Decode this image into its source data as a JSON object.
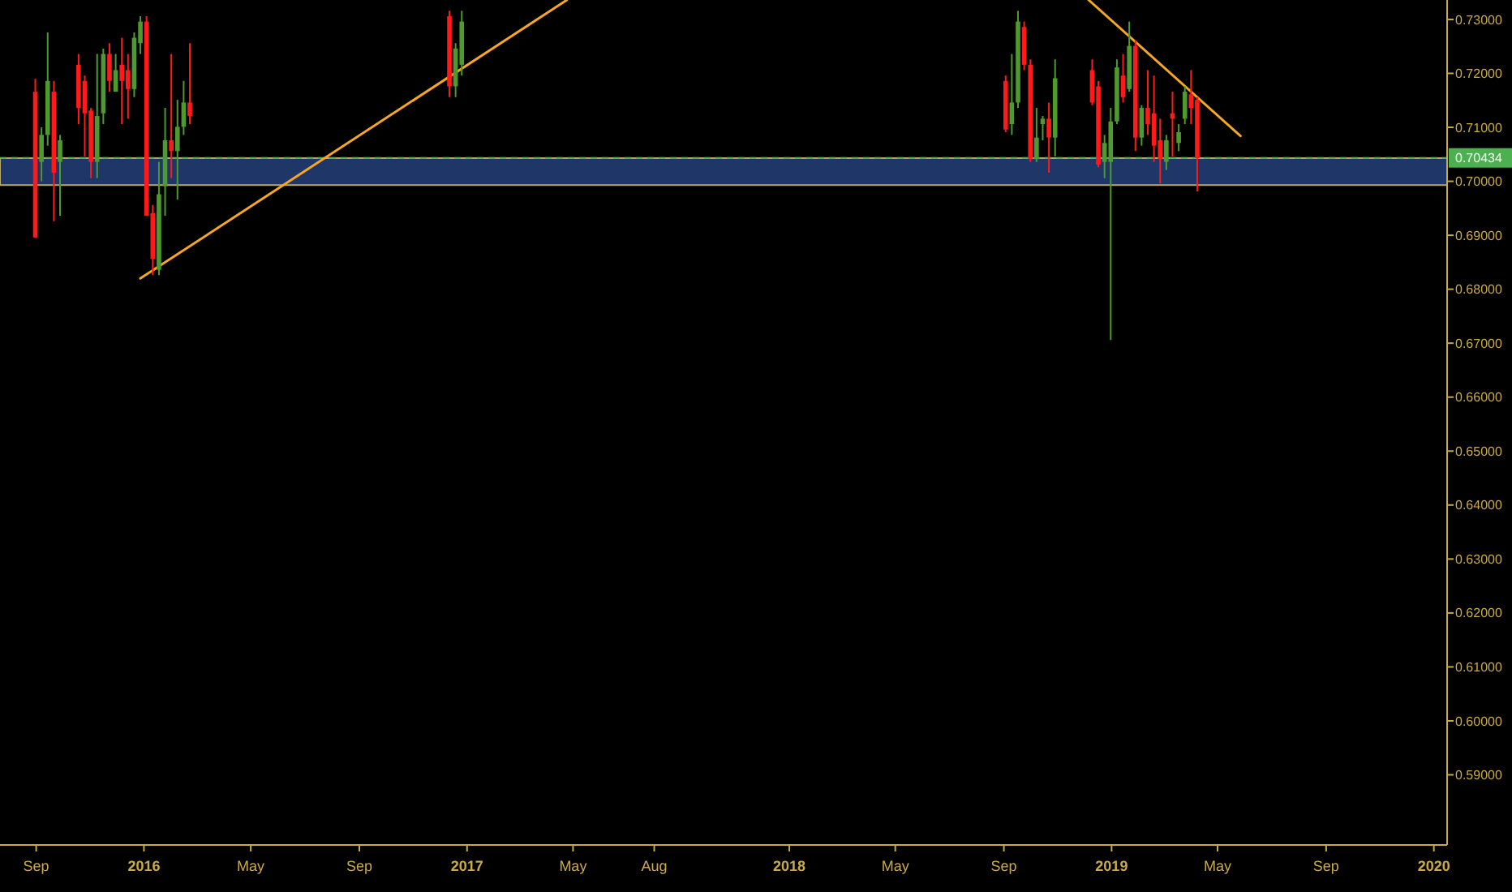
{
  "chart_data": {
    "type": "candlestick",
    "x": [
      "2015-08-31",
      "2015-09-07",
      "2015-09-14",
      "2015-09-21",
      "2015-09-28",
      "2015-10-19",
      "2015-10-26",
      "2015-11-02",
      "2015-11-09",
      "2015-11-16",
      "2015-11-23",
      "2015-11-30",
      "2015-12-07",
      "2015-12-14",
      "2015-12-21",
      "2015-12-28",
      "2016-01-04",
      "2016-01-11",
      "2016-01-18",
      "2016-01-25",
      "2016-02-01",
      "2016-02-08",
      "2016-02-15",
      "2016-02-22",
      "2016-12-12",
      "2016-12-19",
      "2016-12-26",
      "2018-09-03",
      "2018-09-10",
      "2018-09-17",
      "2018-09-24",
      "2018-10-01",
      "2018-10-08",
      "2018-10-15",
      "2018-10-22",
      "2018-10-29",
      "2018-12-10",
      "2018-12-17",
      "2018-12-24",
      "2018-12-31",
      "2019-01-07",
      "2019-01-14",
      "2019-01-21",
      "2019-01-28",
      "2019-02-04",
      "2019-02-11",
      "2019-02-18",
      "2019-02-25",
      "2019-03-04",
      "2019-03-11",
      "2019-03-18",
      "2019-03-25",
      "2019-04-01",
      "2019-04-08"
    ],
    "ohlc": [
      [
        0.7166,
        0.719,
        0.6896,
        0.6896
      ],
      [
        0.7036,
        0.71,
        0.7,
        0.7086
      ],
      [
        0.7086,
        0.7276,
        0.7066,
        0.7186
      ],
      [
        0.7166,
        0.7186,
        0.6926,
        0.7016
      ],
      [
        0.7036,
        0.7086,
        0.6936,
        0.7076
      ],
      [
        0.7216,
        0.7236,
        0.7106,
        0.7136
      ],
      [
        0.7186,
        0.7196,
        0.7046,
        0.7126
      ],
      [
        0.7131,
        0.7136,
        0.7006,
        0.7036
      ],
      [
        0.7036,
        0.7236,
        0.7006,
        0.7121
      ],
      [
        0.7126,
        0.7246,
        0.7106,
        0.7236
      ],
      [
        0.7236,
        0.7256,
        0.7166,
        0.7186
      ],
      [
        0.7166,
        0.7236,
        0.7166,
        0.7206
      ],
      [
        0.7216,
        0.7266,
        0.7106,
        0.7186
      ],
      [
        0.7206,
        0.7236,
        0.7116,
        0.7171
      ],
      [
        0.7171,
        0.7276,
        0.7156,
        0.7266
      ],
      [
        0.7256,
        0.7306,
        0.7236,
        0.7296
      ],
      [
        0.7296,
        0.7306,
        0.6936,
        0.6936
      ],
      [
        0.6941,
        0.6956,
        0.6826,
        0.6856
      ],
      [
        0.6836,
        0.7036,
        0.6826,
        0.6976
      ],
      [
        0.6991,
        0.7136,
        0.6936,
        0.7076
      ],
      [
        0.7076,
        0.7236,
        0.7006,
        0.7056
      ],
      [
        0.7056,
        0.7151,
        0.6966,
        0.7101
      ],
      [
        0.7101,
        0.7186,
        0.7086,
        0.7146
      ],
      [
        0.7146,
        0.7256,
        0.7106,
        0.7121
      ],
      [
        0.7306,
        0.7316,
        0.7156,
        0.7176
      ],
      [
        0.7176,
        0.7256,
        0.7156,
        0.7246
      ],
      [
        0.7216,
        0.7316,
        0.7196,
        0.7296
      ],
      [
        0.7186,
        0.7196,
        0.7091,
        0.7096
      ],
      [
        0.7106,
        0.7236,
        0.7086,
        0.7146
      ],
      [
        0.7146,
        0.7316,
        0.7136,
        0.7296
      ],
      [
        0.7286,
        0.7296,
        0.7206,
        0.7216
      ],
      [
        0.7216,
        0.7226,
        0.7036,
        0.7041
      ],
      [
        0.7041,
        0.7136,
        0.7036,
        0.7081
      ],
      [
        0.7106,
        0.7121,
        0.7076,
        0.7116
      ],
      [
        0.7116,
        0.7146,
        0.7016,
        0.7081
      ],
      [
        0.7081,
        0.7226,
        0.7046,
        0.7191
      ],
      [
        0.7206,
        0.7226,
        0.7141,
        0.7146
      ],
      [
        0.7176,
        0.7186,
        0.7026,
        0.7031
      ],
      [
        0.7036,
        0.7086,
        0.7006,
        0.7071
      ],
      [
        0.7036,
        0.7136,
        0.6706,
        0.7111
      ],
      [
        0.7111,
        0.7226,
        0.7106,
        0.7211
      ],
      [
        0.7196,
        0.7236,
        0.7146,
        0.7156
      ],
      [
        0.7171,
        0.7296,
        0.7166,
        0.7251
      ],
      [
        0.7251,
        0.7261,
        0.7056,
        0.7081
      ],
      [
        0.7081,
        0.7141,
        0.7066,
        0.7136
      ],
      [
        0.7136,
        0.7206,
        0.7086,
        0.7106
      ],
      [
        0.7126,
        0.7196,
        0.7036,
        0.7066
      ],
      [
        0.7076,
        0.7116,
        0.6996,
        0.7041
      ],
      [
        0.7036,
        0.7086,
        0.7021,
        0.7076
      ],
      [
        0.7126,
        0.7166,
        0.7046,
        0.7116
      ],
      [
        0.7071,
        0.7106,
        0.7056,
        0.7091
      ],
      [
        0.7116,
        0.7176,
        0.7106,
        0.7166
      ],
      [
        0.7161,
        0.7206,
        0.7106,
        0.7136
      ],
      [
        0.7151,
        0.7156,
        0.6981,
        0.7043
      ]
    ],
    "series": [
      {
        "type": "line",
        "x": [
          "2015-12-28",
          "2017-04-24"
        ],
        "values": [
          0.682,
          0.7336
        ],
        "color": "#f5a623"
      },
      {
        "type": "line",
        "x": [
          "2018-12-06",
          "2019-05-27"
        ],
        "values": [
          0.7336,
          0.7084
        ],
        "color": "#f5a623"
      }
    ],
    "xlim": [
      "2015-07-22",
      "2020-01-16"
    ],
    "xticks": [
      {
        "value": "2015-09-01",
        "label": "Sep"
      },
      {
        "value": "2016-01-01",
        "label": "2016"
      },
      {
        "value": "2016-05-01",
        "label": "May"
      },
      {
        "value": "2016-09-01",
        "label": "Sep"
      },
      {
        "value": "2017-01-01",
        "label": "2017"
      },
      {
        "value": "2017-05-01",
        "label": "May"
      },
      {
        "value": "2017-08-01",
        "label": "Aug"
      },
      {
        "value": "2018-01-01",
        "label": "2018"
      },
      {
        "value": "2018-05-01",
        "label": "May"
      },
      {
        "value": "2018-09-01",
        "label": "Sep"
      },
      {
        "value": "2019-01-01",
        "label": "2019"
      },
      {
        "value": "2019-05-01",
        "label": "May"
      },
      {
        "value": "2019-09-01",
        "label": "Sep"
      },
      {
        "value": "2020-01-01",
        "label": "2020"
      }
    ],
    "ylim": [
      0.577,
      0.7336
    ],
    "yticks": [
      {
        "value": 0.59,
        "label": "0.59000"
      },
      {
        "value": 0.6,
        "label": "0.60000"
      },
      {
        "value": 0.61,
        "label": "0.61000"
      },
      {
        "value": 0.62,
        "label": "0.62000"
      },
      {
        "value": 0.63,
        "label": "0.63000"
      },
      {
        "value": 0.64,
        "label": "0.64000"
      },
      {
        "value": 0.65,
        "label": "0.65000"
      },
      {
        "value": 0.66,
        "label": "0.66000"
      },
      {
        "value": 0.67,
        "label": "0.67000"
      },
      {
        "value": 0.68,
        "label": "0.68000"
      },
      {
        "value": 0.69,
        "label": "0.69000"
      },
      {
        "value": 0.7,
        "label": "0.70000"
      },
      {
        "value": 0.71,
        "label": "0.71000"
      },
      {
        "value": 0.72,
        "label": "0.72000"
      },
      {
        "value": 0.73,
        "label": "0.73000"
      }
    ],
    "bands": [
      {
        "axis": "y",
        "from": 0.6993,
        "to": 0.7043,
        "color": "#23407a"
      }
    ],
    "ref_lines": [
      {
        "axis": "y",
        "value": 0.70434,
        "label": "0.70434",
        "color": "#4caf50",
        "line_style": "dashed"
      }
    ],
    "grid": false
  }
}
